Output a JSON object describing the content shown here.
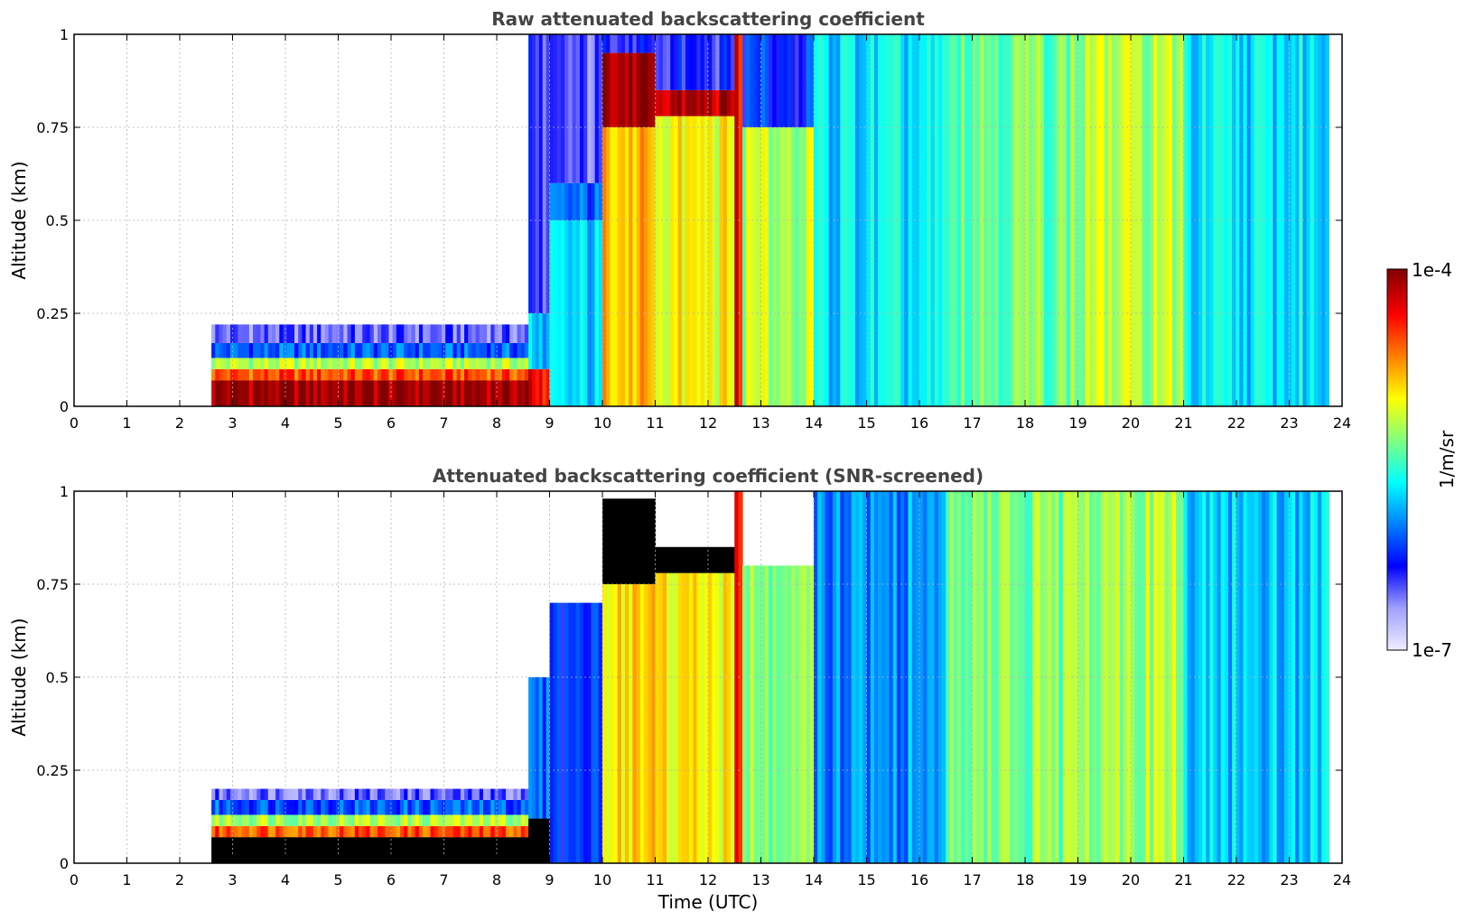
{
  "chart_data": [
    {
      "type": "heatmap",
      "title": "Raw attenuated backscattering coefficient",
      "xlabel": "",
      "ylabel": "Altitude (km)",
      "xlim": [
        0,
        24
      ],
      "ylim": [
        0,
        1
      ],
      "xticks": [
        "0",
        "1",
        "2",
        "3",
        "4",
        "5",
        "6",
        "7",
        "8",
        "9",
        "10",
        "11",
        "12",
        "13",
        "14",
        "15",
        "16",
        "17",
        "18",
        "19",
        "20",
        "21",
        "22",
        "23",
        "24"
      ],
      "yticks": [
        "0",
        "0.25",
        "0.5",
        "0.75",
        "1"
      ],
      "grid": true,
      "data_start_time": 2.6,
      "data_end_time": 23.75,
      "columns": [
        {
          "t0": 2.6,
          "t1": 8.6,
          "top": 0.22,
          "layers": [
            [
              0,
              0.07,
              0.98
            ],
            [
              0.07,
              0.1,
              0.82
            ],
            [
              0.1,
              0.13,
              0.6
            ],
            [
              0.13,
              0.17,
              0.3
            ],
            [
              0.17,
              0.22,
              0.15
            ]
          ]
        },
        {
          "t0": 8.6,
          "t1": 9.0,
          "top": 1.0,
          "layers": [
            [
              0,
              0.1,
              0.9
            ],
            [
              0.1,
              0.25,
              0.4
            ],
            [
              0.25,
              1.0,
              0.2
            ]
          ]
        },
        {
          "t0": 9.0,
          "t1": 10.0,
          "top": 1.0,
          "layers": [
            [
              0,
              0.5,
              0.4
            ],
            [
              0.5,
              0.6,
              0.3
            ],
            [
              0.6,
              1.0,
              0.15
            ]
          ]
        },
        {
          "t0": 10.0,
          "t1": 11.0,
          "top": 1.0,
          "layers": [
            [
              0,
              0.75,
              0.72
            ],
            [
              0.75,
              0.95,
              0.97
            ],
            [
              0.95,
              1.0,
              0.2
            ]
          ]
        },
        {
          "t0": 11.0,
          "t1": 12.5,
          "top": 1.0,
          "layers": [
            [
              0,
              0.78,
              0.66
            ],
            [
              0.78,
              0.85,
              0.95
            ],
            [
              0.85,
              1.0,
              0.2
            ]
          ]
        },
        {
          "t0": 12.5,
          "t1": 12.65,
          "top": 1.0,
          "layers": [
            [
              0,
              1.0,
              0.88
            ]
          ]
        },
        {
          "t0": 12.65,
          "t1": 14.0,
          "top": 1.0,
          "layers": [
            [
              0,
              0.75,
              0.6
            ],
            [
              0.75,
              1.0,
              0.25
            ]
          ]
        },
        {
          "t0": 14.0,
          "t1": 16.5,
          "top": 1.0,
          "layers": [
            [
              0,
              1.0,
              0.42
            ]
          ]
        },
        {
          "t0": 16.5,
          "t1": 19.0,
          "top": 1.0,
          "layers": [
            [
              0,
              1.0,
              0.55
            ]
          ]
        },
        {
          "t0": 19.0,
          "t1": 21.0,
          "top": 1.0,
          "layers": [
            [
              0,
              1.0,
              0.6
            ]
          ]
        },
        {
          "t0": 21.0,
          "t1": 23.75,
          "top": 1.0,
          "layers": [
            [
              0,
              1.0,
              0.42
            ]
          ]
        }
      ]
    },
    {
      "type": "heatmap",
      "title": "Attenuated backscattering coefficient (SNR-screened)",
      "xlabel": "Time (UTC)",
      "ylabel": "Altitude (km)",
      "xlim": [
        0,
        24
      ],
      "ylim": [
        0,
        1
      ],
      "xticks": [
        "0",
        "1",
        "2",
        "3",
        "4",
        "5",
        "6",
        "7",
        "8",
        "9",
        "10",
        "11",
        "12",
        "13",
        "14",
        "15",
        "16",
        "17",
        "18",
        "19",
        "20",
        "21",
        "22",
        "23",
        "24"
      ],
      "yticks": [
        "0",
        "0.25",
        "0.5",
        "0.75",
        "1"
      ],
      "grid": true,
      "data_start_time": 2.6,
      "data_end_time": 23.75,
      "saturated_color": "#000000",
      "columns": [
        {
          "t0": 2.6,
          "t1": 8.6,
          "top": 0.2,
          "layers": [
            [
              0,
              0.07,
              1.05
            ],
            [
              0.07,
              0.1,
              0.82
            ],
            [
              0.1,
              0.13,
              0.6
            ],
            [
              0.13,
              0.17,
              0.3
            ],
            [
              0.17,
              0.2,
              0.15
            ]
          ]
        },
        {
          "t0": 8.6,
          "t1": 9.0,
          "top": 0.5,
          "layers": [
            [
              0,
              0.12,
              1.05
            ],
            [
              0.12,
              0.5,
              0.3
            ]
          ]
        },
        {
          "t0": 9.0,
          "t1": 10.0,
          "top": 0.7,
          "layers": [
            [
              0,
              0.7,
              0.25
            ]
          ]
        },
        {
          "t0": 10.0,
          "t1": 11.0,
          "top": 0.98,
          "layers": [
            [
              0,
              0.75,
              0.7
            ],
            [
              0.75,
              0.98,
              1.05
            ]
          ]
        },
        {
          "t0": 11.0,
          "t1": 12.5,
          "top": 0.85,
          "layers": [
            [
              0,
              0.78,
              0.66
            ],
            [
              0.78,
              0.85,
              1.05
            ]
          ]
        },
        {
          "t0": 12.5,
          "t1": 12.65,
          "top": 1.0,
          "layers": [
            [
              0,
              1.0,
              0.88
            ]
          ]
        },
        {
          "t0": 12.65,
          "t1": 14.0,
          "top": 0.8,
          "layers": [
            [
              0,
              0.8,
              0.55
            ]
          ]
        },
        {
          "t0": 14.0,
          "t1": 16.5,
          "top": 1.0,
          "layers": [
            [
              0,
              1.0,
              0.35
            ]
          ]
        },
        {
          "t0": 16.5,
          "t1": 19.0,
          "top": 1.0,
          "layers": [
            [
              0,
              1.0,
              0.55
            ]
          ]
        },
        {
          "t0": 19.0,
          "t1": 21.0,
          "top": 1.0,
          "layers": [
            [
              0,
              1.0,
              0.6
            ]
          ]
        },
        {
          "t0": 21.0,
          "t1": 23.75,
          "top": 1.0,
          "layers": [
            [
              0,
              1.0,
              0.4
            ]
          ]
        }
      ]
    }
  ],
  "colorbar": {
    "label": "1/m/sr",
    "max_label": "1e-4",
    "min_label": "1e-7",
    "colormap": [
      "#eeeeff",
      "#a0a0ff",
      "#0000ff",
      "#0080ff",
      "#00ffff",
      "#80ff80",
      "#ffff00",
      "#ff8000",
      "#ff0000",
      "#800000"
    ]
  }
}
